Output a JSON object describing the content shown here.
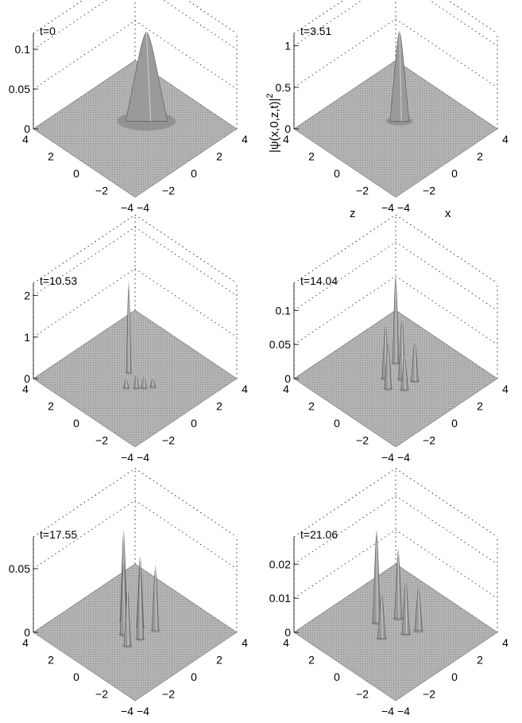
{
  "figure": {
    "description_axis_label": "|ψ(x,0,z,t)|",
    "description_axis_label_sup": "2",
    "z_label": "z",
    "x_label": "x"
  },
  "chart_data": [
    {
      "type": "surface",
      "title": "t=0",
      "zticks": [
        "0",
        "0.05",
        "0.1"
      ],
      "zlim": [
        0,
        0.12
      ],
      "ztick_values": [
        0,
        0.05,
        0.1
      ],
      "left_ticks": [
        "4",
        "2",
        "0",
        "−2",
        "−4"
      ],
      "right_ticks": [
        "−4",
        "−2",
        "0",
        "2",
        "4"
      ],
      "xlim": [
        -4,
        4
      ],
      "ylim": [
        -4,
        4
      ],
      "peaks": [
        {
          "x": 0.9,
          "y": 0.0,
          "h": 0.112,
          "sx": 1.2,
          "sy": 1.0
        }
      ],
      "grid": true
    },
    {
      "type": "surface",
      "title": "t=3.51",
      "zticks": [
        "0",
        "0.5",
        "1"
      ],
      "zlim": [
        0,
        1.15
      ],
      "ztick_values": [
        0,
        0.5,
        1
      ],
      "left_ticks": [
        "4",
        "2",
        "0",
        "−2",
        "−4"
      ],
      "right_ticks": [
        "−4",
        "−2",
        "0",
        "2",
        "4"
      ],
      "xlim": [
        -4,
        4
      ],
      "ylim": [
        -4,
        4
      ],
      "peaks": [
        {
          "x": 0.6,
          "y": 0.3,
          "h": 1.08,
          "sx": 0.55,
          "sy": 0.45
        }
      ],
      "grid": true
    },
    {
      "type": "surface",
      "title": "t=10.53",
      "zticks": [
        "0",
        "1",
        "2"
      ],
      "zlim": [
        0,
        2.3
      ],
      "ztick_values": [
        0,
        1,
        2
      ],
      "left_ticks": [
        "4",
        "2",
        "0",
        "−2",
        "−4"
      ],
      "right_ticks": [
        "−4",
        "−2",
        "0",
        "2",
        "4"
      ],
      "xlim": [
        -4,
        4
      ],
      "ylim": [
        -4,
        4
      ],
      "peaks": [
        {
          "x": 0.1,
          "y": 0.6,
          "h": 2.2,
          "sx": 0.08,
          "sy": 0.08
        },
        {
          "x": -0.5,
          "y": -0.6,
          "h": 0.35,
          "sx": 0.15,
          "sy": 0.15
        },
        {
          "x": -0.2,
          "y": -0.9,
          "h": 0.3,
          "sx": 0.15,
          "sy": 0.15
        },
        {
          "x": 0.2,
          "y": -1.2,
          "h": 0.25,
          "sx": 0.15,
          "sy": 0.15
        },
        {
          "x": -0.9,
          "y": -0.2,
          "h": 0.25,
          "sx": 0.15,
          "sy": 0.15
        }
      ],
      "grid": true
    },
    {
      "type": "surface",
      "title": "t=14.04",
      "zticks": [
        "0",
        "0.05",
        "0.1"
      ],
      "zlim": [
        0,
        0.14
      ],
      "ztick_values": [
        0,
        0.05,
        0.1
      ],
      "left_ticks": [
        "4",
        "2",
        "0",
        "−2",
        "−4"
      ],
      "right_ticks": [
        "−4",
        "−2",
        "0",
        "2",
        "4"
      ],
      "xlim": [
        -4,
        4
      ],
      "ylim": [
        -4,
        4
      ],
      "peaks": [
        {
          "x": 0.9,
          "y": 0.9,
          "h": 0.13,
          "sx": 0.18,
          "sy": 0.18
        },
        {
          "x": -0.4,
          "y": 0.4,
          "h": 0.08,
          "sx": 0.2,
          "sy": 0.2
        },
        {
          "x": 0.2,
          "y": -0.3,
          "h": 0.09,
          "sx": 0.2,
          "sy": 0.2
        },
        {
          "x": -0.9,
          "y": -0.3,
          "h": 0.07,
          "sx": 0.2,
          "sy": 0.2
        },
        {
          "x": 0.6,
          "y": -0.9,
          "h": 0.06,
          "sx": 0.2,
          "sy": 0.2
        },
        {
          "x": -0.3,
          "y": -1.0,
          "h": 0.05,
          "sx": 0.2,
          "sy": 0.2
        }
      ],
      "grid": true
    },
    {
      "type": "surface",
      "title": "t=17.55",
      "zticks": [
        "0",
        "0.05"
      ],
      "zlim": [
        0,
        0.075
      ],
      "ztick_values": [
        0,
        0.05
      ],
      "left_ticks": [
        "4",
        "2",
        "0",
        "−2",
        "−4"
      ],
      "right_ticks": [
        "−4",
        "−2",
        "0",
        "2",
        "4"
      ],
      "xlim": [
        -4,
        4
      ],
      "ylim": [
        -4,
        4
      ],
      "peaks": [
        {
          "x": 0.2,
          "y": 1.1,
          "h": 0.07,
          "sx": 0.2,
          "sy": 0.2
        },
        {
          "x": -0.6,
          "y": 0.3,
          "h": 0.06,
          "sx": 0.2,
          "sy": 0.2
        },
        {
          "x": 0.5,
          "y": 0.1,
          "h": 0.055,
          "sx": 0.2,
          "sy": 0.2
        },
        {
          "x": -0.2,
          "y": -0.6,
          "h": 0.06,
          "sx": 0.2,
          "sy": 0.2
        },
        {
          "x": 0.9,
          "y": -0.7,
          "h": 0.05,
          "sx": 0.2,
          "sy": 0.2
        },
        {
          "x": -1.1,
          "y": -0.5,
          "h": 0.045,
          "sx": 0.2,
          "sy": 0.2
        }
      ],
      "grid": true
    },
    {
      "type": "surface",
      "title": "t=21.06",
      "zticks": [
        "0",
        "0.01",
        "0.02"
      ],
      "zlim": [
        0,
        0.028
      ],
      "ztick_values": [
        0,
        0.01,
        0.02
      ],
      "left_ticks": [
        "4",
        "2",
        "0",
        "−2",
        "−4"
      ],
      "right_ticks": [
        "−4",
        "−2",
        "0",
        "2",
        "4"
      ],
      "xlim": [
        -4,
        4
      ],
      "ylim": [
        -4,
        4
      ],
      "peaks": [
        {
          "x": -0.2,
          "y": 1.3,
          "h": 0.027,
          "sx": 0.22,
          "sy": 0.22
        },
        {
          "x": 0.9,
          "y": 0.7,
          "h": 0.02,
          "sx": 0.22,
          "sy": 0.22
        },
        {
          "x": -0.9,
          "y": 0.2,
          "h": 0.014,
          "sx": 0.22,
          "sy": 0.22
        },
        {
          "x": 0.3,
          "y": -0.5,
          "h": 0.016,
          "sx": 0.22,
          "sy": 0.22
        },
        {
          "x": 1.0,
          "y": -0.8,
          "h": 0.013,
          "sx": 0.22,
          "sy": 0.22
        }
      ],
      "grid": true
    }
  ]
}
